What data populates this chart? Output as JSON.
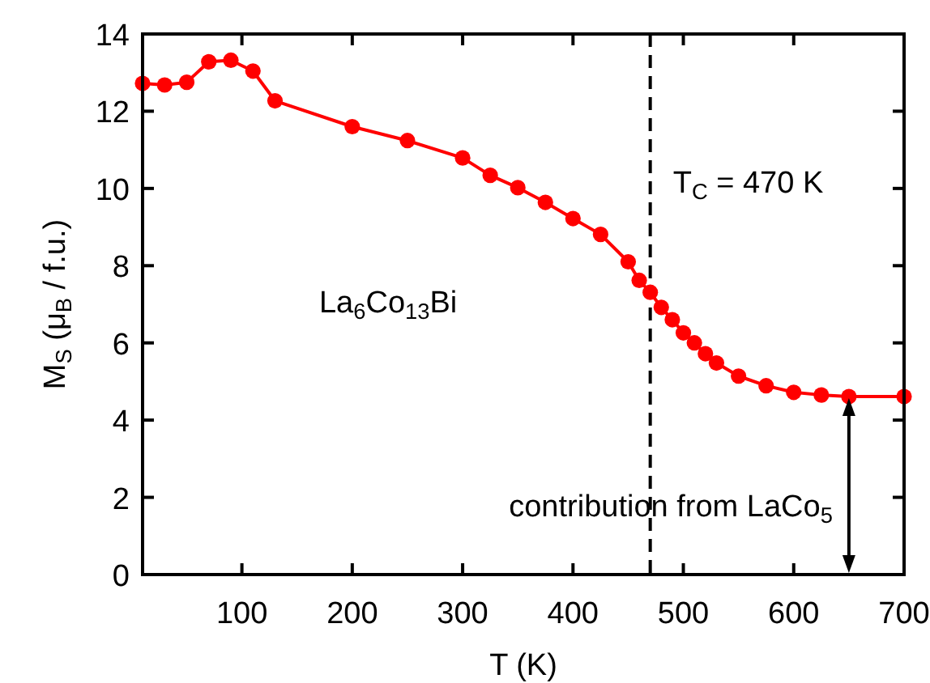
{
  "chart_data": {
    "type": "line",
    "xlabel": "T (K)",
    "ylabel": "M$_{S}$ (μ$_{B}$ / f.u.)",
    "x": [
      10,
      30,
      50,
      70,
      90,
      110,
      130,
      200,
      250,
      300,
      325,
      350,
      375,
      400,
      425,
      450,
      460,
      470,
      480,
      490,
      500,
      510,
      520,
      530,
      550,
      575,
      600,
      625,
      650,
      700
    ],
    "series": [
      {
        "color": "#ff0000",
        "values": [
          12.72,
          12.68,
          12.75,
          13.28,
          13.32,
          13.04,
          12.27,
          11.6,
          11.24,
          10.79,
          10.34,
          10.02,
          9.64,
          9.22,
          8.81,
          8.1,
          7.62,
          7.31,
          6.92,
          6.6,
          6.26,
          6.0,
          5.72,
          5.48,
          5.14,
          4.89,
          4.72,
          4.65,
          4.61,
          4.61
        ]
      }
    ],
    "marker": "circle",
    "line_style": "solid",
    "xlim": [
      10,
      700
    ],
    "xticks": [
      100,
      200,
      300,
      400,
      500,
      600,
      700
    ],
    "ylim": [
      0,
      14
    ],
    "yticks": [
      0,
      2,
      4,
      6,
      8,
      10,
      12,
      14
    ],
    "ref_lines": [
      {
        "axis": "x",
        "value": 470,
        "label": "T$_{C}$ = 470 K",
        "color": "#000000",
        "line_style": "dashed"
      }
    ],
    "annotations": [
      "La$_{6}$Co$_{13}$Bi",
      "contribution from LaCo$_{5}$"
    ]
  }
}
